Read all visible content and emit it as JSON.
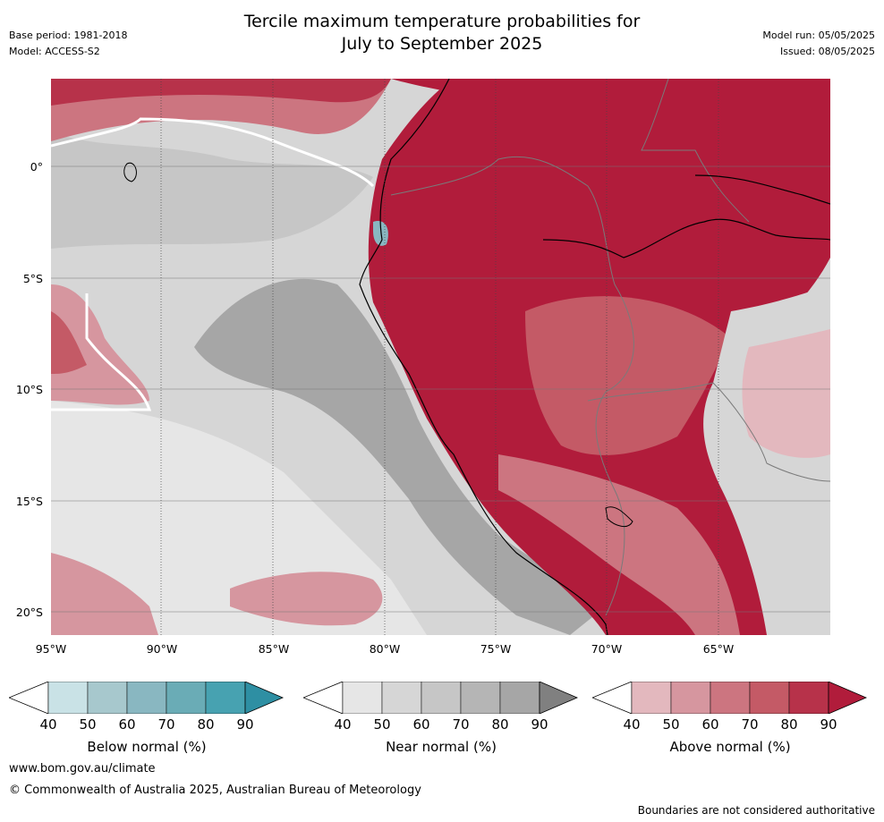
{
  "header": {
    "title_line1": "Tercile maximum temperature probabilities for",
    "title_line2": "July to September 2025",
    "base_period": "Base period: 1981-2018",
    "model": "Model: ACCESS-S2",
    "model_run": "Model run: 05/05/2025",
    "issued": "Issued: 08/05/2025"
  },
  "axes": {
    "lat_labels": [
      "0°",
      "5°S",
      "10°S",
      "15°S",
      "20°S"
    ],
    "lon_labels": [
      "95°W",
      "90°W",
      "85°W",
      "80°W",
      "75°W",
      "70°W",
      "65°W"
    ]
  },
  "colorbars": [
    {
      "label": "Below normal (%)",
      "ticks": [
        "40",
        "50",
        "60",
        "70",
        "80",
        "90"
      ],
      "colors": [
        "#c9e2e6",
        "#a7c8cd",
        "#89b7c1",
        "#6aacb6",
        "#47a2b1",
        "#2e8fa3"
      ]
    },
    {
      "label": "Near normal (%)",
      "ticks": [
        "40",
        "50",
        "60",
        "70",
        "80",
        "90"
      ],
      "colors": [
        "#e6e6e6",
        "#d6d6d6",
        "#c6c6c6",
        "#b5b5b5",
        "#a6a6a6",
        "#808080"
      ]
    },
    {
      "label": "Above normal (%)",
      "ticks": [
        "40",
        "50",
        "60",
        "70",
        "80",
        "90"
      ],
      "colors": [
        "#e3b8be",
        "#d6969f",
        "#cc7580",
        "#c45a66",
        "#b7324a",
        "#b11c3b"
      ]
    }
  ],
  "footer": {
    "website": "www.bom.gov.au/climate",
    "copyright": "© Commonwealth of Australia 2025, Australian Bureau of Meteorology",
    "disclaimer": "Boundaries are not considered authoritative"
  }
}
